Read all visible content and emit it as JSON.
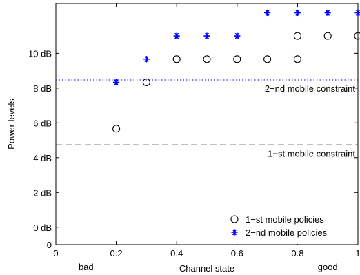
{
  "chart_data": {
    "type": "scatter",
    "xlabel": "Channel state",
    "ylabel": "Power levels",
    "xlim": [
      0,
      1
    ],
    "ylim": [
      0,
      10.4
    ],
    "x_ticks": [
      {
        "value": 0,
        "label": "0"
      },
      {
        "value": 0.2,
        "label": "0.2"
      },
      {
        "value": 0.4,
        "label": "0.4"
      },
      {
        "value": 0.6,
        "label": "0.6"
      },
      {
        "value": 0.8,
        "label": "0.8"
      },
      {
        "value": 1,
        "label": "1"
      }
    ],
    "y_ticks": [
      {
        "value": 0,
        "label": "0"
      },
      {
        "value": 0.75,
        "label": "0 dB"
      },
      {
        "value": 2.25,
        "label": "2 dB"
      },
      {
        "value": 3.75,
        "label": "4 dB"
      },
      {
        "value": 5.25,
        "label": "6 dB"
      },
      {
        "value": 6.75,
        "label": "8 dB"
      },
      {
        "value": 8.25,
        "label": "10 dB"
      }
    ],
    "x_annotations": [
      {
        "value": 0.1,
        "label": "bad"
      },
      {
        "value": 0.9,
        "label": "good"
      }
    ],
    "series": [
      {
        "name": "1−st mobile policies",
        "marker": "circle",
        "color": "#000000",
        "points": [
          {
            "x": 0.2,
            "y": 5.0
          },
          {
            "x": 0.3,
            "y": 7.0
          },
          {
            "x": 0.4,
            "y": 8.0
          },
          {
            "x": 0.5,
            "y": 8.0
          },
          {
            "x": 0.6,
            "y": 8.0
          },
          {
            "x": 0.7,
            "y": 8.0
          },
          {
            "x": 0.8,
            "y": 8.0
          },
          {
            "x": 0.8,
            "y": 9.0
          },
          {
            "x": 0.9,
            "y": 9.0
          },
          {
            "x": 1.0,
            "y": 9.0
          }
        ]
      },
      {
        "name": "2−nd mobile policies",
        "marker": "asterisk",
        "color": "#0000ff",
        "points": [
          {
            "x": 0.2,
            "y": 7.0
          },
          {
            "x": 0.3,
            "y": 8.0
          },
          {
            "x": 0.4,
            "y": 9.0
          },
          {
            "x": 0.5,
            "y": 9.0
          },
          {
            "x": 0.6,
            "y": 9.0
          },
          {
            "x": 0.7,
            "y": 10.0
          },
          {
            "x": 0.8,
            "y": 10.0
          },
          {
            "x": 0.9,
            "y": 10.0
          },
          {
            "x": 1.0,
            "y": 10.0
          }
        ]
      }
    ],
    "constraints": [
      {
        "label": "1−st mobile constraint",
        "y": 4.3,
        "style": "dashed",
        "color": "#000000"
      },
      {
        "label": "2−nd mobile constraint",
        "y": 7.1,
        "style": "dotted",
        "color": "#0000ff"
      }
    ],
    "legend_position": "bottom-right",
    "grid": false
  }
}
